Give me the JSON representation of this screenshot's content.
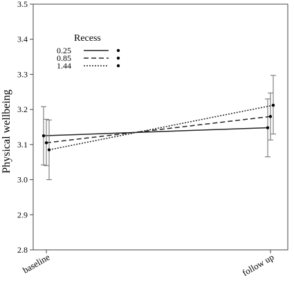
{
  "chart_data": {
    "type": "line",
    "title": "",
    "xlabel": "",
    "ylabel": "Physical wellbeing",
    "categories": [
      "baseline",
      "follow up"
    ],
    "ylim": [
      2.8,
      3.5
    ],
    "yticks": [
      "2.8",
      "2.9",
      "3.0",
      "3.1",
      "3.2",
      "3.3",
      "3.4",
      "3.5"
    ],
    "grid": false,
    "legend": {
      "title": "Recess",
      "placement": "top-left",
      "entries": [
        "0.25",
        "0.85",
        "1.44"
      ]
    },
    "series": [
      {
        "name": "0.25",
        "line_style": "solid",
        "values": [
          3.125,
          3.148
        ],
        "error_low": [
          3.042,
          3.065
        ],
        "error_high": [
          3.208,
          3.23
        ]
      },
      {
        "name": "0.85",
        "line_style": "dashed",
        "values": [
          3.105,
          3.18
        ],
        "error_low": [
          3.04,
          3.113
        ],
        "error_high": [
          3.172,
          3.247
        ]
      },
      {
        "name": "1.44",
        "line_style": "dotted",
        "values": [
          3.085,
          3.212
        ],
        "error_low": [
          3.0,
          3.13
        ],
        "error_high": [
          3.17,
          3.297
        ]
      }
    ]
  }
}
